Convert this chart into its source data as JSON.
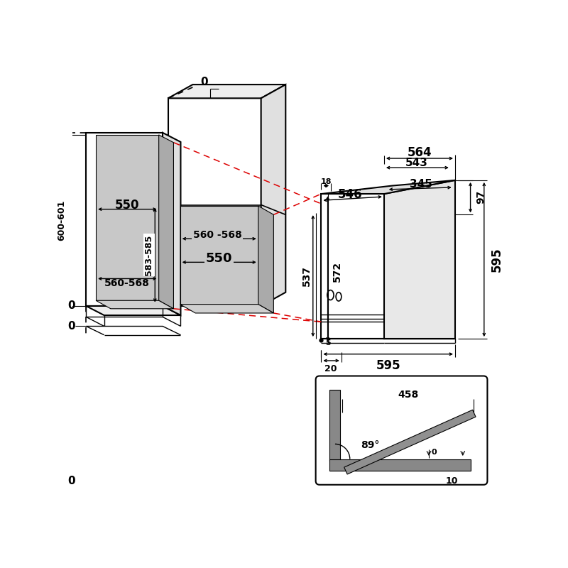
{
  "bg_color": "#ffffff",
  "line_color": "#000000",
  "red_dashed": "#dd0000",
  "gray_fill": "#c8c8c8",
  "gray_fill2": "#aaaaaa",
  "annotations": {
    "top_0": "0",
    "left_upper_0": "0",
    "left_lower_0": "0",
    "bottom_0": "0",
    "dim_583_585": "583-585",
    "dim_560_568_upper": "560 -568",
    "dim_550_upper": "550",
    "dim_564": "564",
    "dim_543": "543",
    "dim_546": "546",
    "dim_345": "345",
    "dim_18": "18",
    "dim_97": "97",
    "dim_537": "537",
    "dim_572": "572",
    "dim_595_horiz": "595",
    "dim_595_vert": "595",
    "dim_5": "5",
    "dim_20": "20",
    "dim_600_601": "600-601",
    "dim_550_lower": "550",
    "dim_560_568_lower": "560-568",
    "dim_458": "458",
    "dim_89": "89°",
    "dim_0_small1": "0",
    "dim_10": "10"
  }
}
